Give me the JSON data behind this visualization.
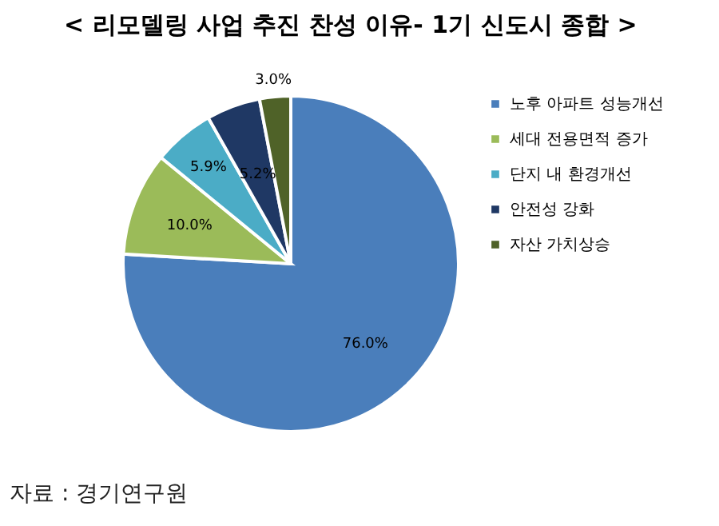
{
  "chart_data": {
    "type": "pie",
    "title": "< 리모델링 사업 추진 찬성 이유- 1기 신도시 종합 >",
    "categories": [
      "노후 아파트 성능개선",
      "세대 전용면적 증가",
      "단지 내 환경개선",
      "안전성 강화",
      "자산 가치상승"
    ],
    "values": [
      76.0,
      10.0,
      5.9,
      5.2,
      3.0
    ],
    "colors": [
      "#4a7ebb",
      "#9bbb59",
      "#4bacc6",
      "#1f3864",
      "#4f6228"
    ],
    "value_labels": [
      "76.0%",
      "10.0%",
      "5.9%",
      "5.2%",
      "3.0%"
    ],
    "legend": "right",
    "annotations": [
      "자료 : 경기연구원"
    ]
  }
}
